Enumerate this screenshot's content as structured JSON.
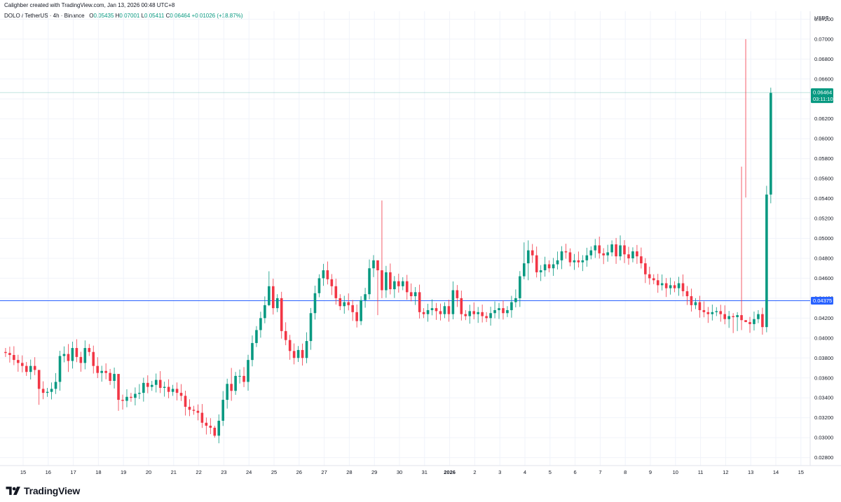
{
  "header": {
    "created_by": "Calighber created with TradingView.com, Jan 13, 2026 00:48 UTC+8"
  },
  "legend": {
    "symbol": "DOLO / TetherUS · 4h · Binance",
    "o_label": "O",
    "o_value": "0.05435",
    "h_label": "H",
    "h_value": "0.07001",
    "l_label": "L",
    "l_value": "0.05411",
    "c_label": "C",
    "c_value": "0.06464",
    "change": "+0.01026 (+18.87%)"
  },
  "brand": {
    "name": "TradingView",
    "logo_icon": "tradingview-logo-icon"
  },
  "colors": {
    "up": "#089981",
    "down": "#f23645",
    "hline": "#2962ff",
    "current": "#089981"
  },
  "chart_data": {
    "type": "candlestick",
    "currency": "USDT",
    "ylim": [
      0.0272,
      0.0728
    ],
    "yticks": [
      "0.07200",
      "0.07000",
      "0.06800",
      "0.06600",
      "0.06400",
      "0.06200",
      "0.06000",
      "0.05800",
      "0.05600",
      "0.05400",
      "0.05200",
      "0.05000",
      "0.04800",
      "0.04600",
      "0.04400",
      "0.04200",
      "0.04000",
      "0.03800",
      "0.03600",
      "0.03400",
      "0.03200",
      "0.03000",
      "0.02800"
    ],
    "xticks": [
      {
        "label": "15",
        "day": 0
      },
      {
        "label": "16",
        "day": 1
      },
      {
        "label": "17",
        "day": 2
      },
      {
        "label": "18",
        "day": 3
      },
      {
        "label": "19",
        "day": 4
      },
      {
        "label": "20",
        "day": 5
      },
      {
        "label": "21",
        "day": 6
      },
      {
        "label": "22",
        "day": 7
      },
      {
        "label": "23",
        "day": 8
      },
      {
        "label": "24",
        "day": 9
      },
      {
        "label": "25",
        "day": 10
      },
      {
        "label": "26",
        "day": 11
      },
      {
        "label": "27",
        "day": 12
      },
      {
        "label": "28",
        "day": 13
      },
      {
        "label": "29",
        "day": 14
      },
      {
        "label": "30",
        "day": 15
      },
      {
        "label": "31",
        "day": 16
      },
      {
        "label": "2026",
        "day": 17,
        "bold": true
      },
      {
        "label": "2",
        "day": 18
      },
      {
        "label": "3",
        "day": 19
      },
      {
        "label": "4",
        "day": 20
      },
      {
        "label": "5",
        "day": 21
      },
      {
        "label": "6",
        "day": 22
      },
      {
        "label": "7",
        "day": 23
      },
      {
        "label": "8",
        "day": 24
      },
      {
        "label": "9",
        "day": 25
      },
      {
        "label": "10",
        "day": 26
      },
      {
        "label": "11",
        "day": 27
      },
      {
        "label": "12",
        "day": 28
      },
      {
        "label": "13",
        "day": 29
      },
      {
        "label": "14",
        "day": 30
      },
      {
        "label": "15",
        "day": 31
      }
    ],
    "horizontal_line": {
      "value": 0.04375,
      "label": "0.04375"
    },
    "current_price": {
      "value": 0.06464,
      "label": "0.06464",
      "countdown": "03:11:10"
    },
    "candles_start_day": -0.7,
    "candles_per_day": 6,
    "closes": [
      0.0385,
      0.0383,
      0.0378,
      0.0375,
      0.0372,
      0.0366,
      0.0372,
      0.0368,
      0.0349,
      0.0345,
      0.0346,
      0.0349,
      0.0356,
      0.0382,
      0.0384,
      0.0377,
      0.039,
      0.0381,
      0.0375,
      0.039,
      0.0386,
      0.0372,
      0.0365,
      0.0367,
      0.0365,
      0.0357,
      0.0364,
      0.0338,
      0.0337,
      0.0341,
      0.034,
      0.0344,
      0.0345,
      0.0355,
      0.0351,
      0.0353,
      0.0358,
      0.035,
      0.0351,
      0.0346,
      0.0349,
      0.0345,
      0.0342,
      0.0331,
      0.0328,
      0.0327,
      0.0325,
      0.0315,
      0.0312,
      0.031,
      0.0302,
      0.0317,
      0.0338,
      0.0354,
      0.0347,
      0.0362,
      0.0362,
      0.0356,
      0.0378,
      0.0395,
      0.0408,
      0.042,
      0.0433,
      0.0452,
      0.043,
      0.044,
      0.0407,
      0.0398,
      0.0387,
      0.038,
      0.0388,
      0.038,
      0.0397,
      0.0425,
      0.0445,
      0.046,
      0.0468,
      0.0459,
      0.0452,
      0.044,
      0.0432,
      0.0436,
      0.0433,
      0.0426,
      0.0417,
      0.0438,
      0.0444,
      0.047,
      0.0478,
      0.0468,
      0.0448,
      0.0466,
      0.0449,
      0.0457,
      0.0452,
      0.0457,
      0.0446,
      0.0442,
      0.0446,
      0.0426,
      0.0424,
      0.0428,
      0.043,
      0.0427,
      0.0424,
      0.0432,
      0.0424,
      0.0448,
      0.044,
      0.0424,
      0.0422,
      0.0427,
      0.0424,
      0.0426,
      0.0422,
      0.042,
      0.0425,
      0.0428,
      0.043,
      0.0425,
      0.0428,
      0.0436,
      0.044,
      0.0462,
      0.0475,
      0.0488,
      0.0483,
      0.0466,
      0.0468,
      0.0474,
      0.047,
      0.0474,
      0.0478,
      0.0487,
      0.0486,
      0.0476,
      0.0478,
      0.0476,
      0.0478,
      0.0483,
      0.0488,
      0.0493,
      0.0485,
      0.0483,
      0.0486,
      0.0494,
      0.0482,
      0.0493,
      0.0484,
      0.048,
      0.0487,
      0.0482,
      0.0475,
      0.0464,
      0.046,
      0.0458,
      0.0453,
      0.0455,
      0.045,
      0.0453,
      0.045,
      0.0455,
      0.0447,
      0.0442,
      0.0433,
      0.0436,
      0.0428,
      0.0426,
      0.0424,
      0.0426,
      0.0427,
      0.0424,
      0.0419,
      0.0422,
      0.0421,
      0.0423,
      0.0418,
      0.0416,
      0.0414,
      0.0419,
      0.0424,
      0.0411,
      0.0544,
      0.0646
    ],
    "first_open": 0.0386,
    "wick_overrides": {
      "15": [
        0.0394,
        0.0366
      ],
      "89": [
        0.0468,
        0.0423
      ],
      "90": [
        0.0538,
        0.044
      ],
      "124": [
        0.0496,
        0.0459
      ],
      "125": [
        0.0498,
        0.0458
      ],
      "147": [
        0.0503,
        0.0478
      ],
      "174": [
        0.0425,
        0.0405
      ],
      "175": [
        0.0426,
        0.0407
      ],
      "176": [
        0.0572,
        0.0408
      ],
      "177": [
        0.07,
        0.0541
      ],
      "63": [
        0.0467,
        0.0432
      ],
      "54": [
        0.037,
        0.0337
      ],
      "50": [
        0.0312,
        0.03
      ],
      "27": [
        0.036,
        0.0327
      ],
      "8": [
        0.0352,
        0.0333
      ]
    }
  }
}
